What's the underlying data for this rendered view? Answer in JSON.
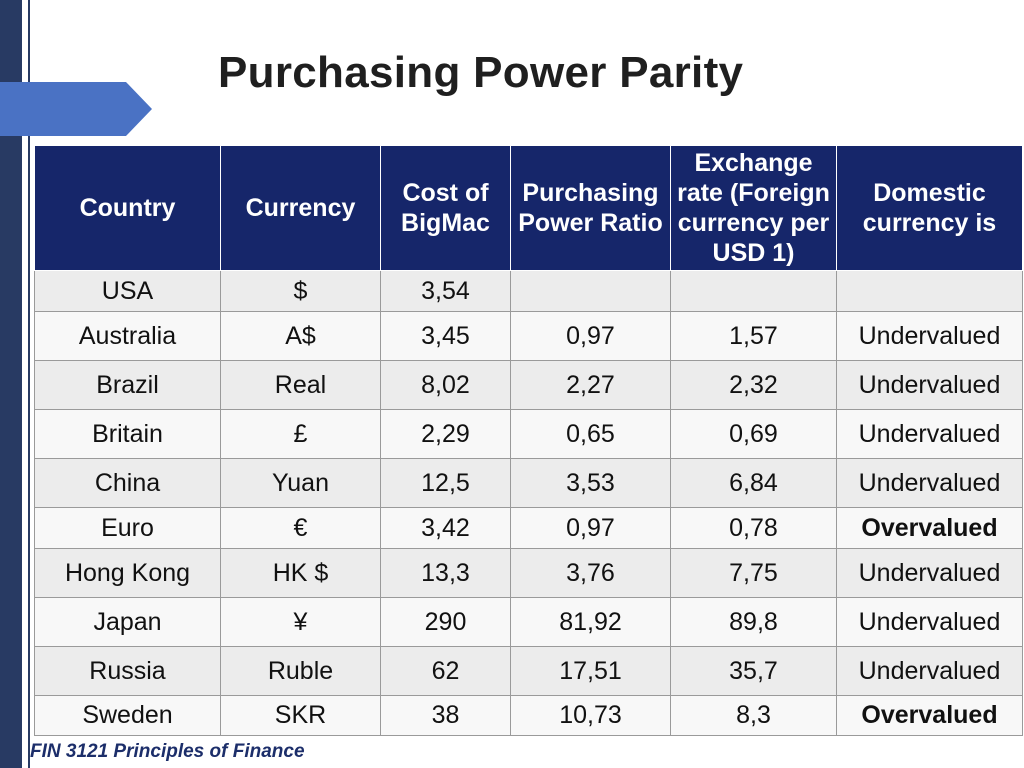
{
  "title": "Purchasing Power Parity",
  "colors": {
    "header_bg": "#16266a",
    "accent": "#4a72c4",
    "sidebar": "#283a63"
  },
  "table": {
    "headers": [
      "Country",
      "Currency",
      "Cost of BigMac",
      "Purchasing Power Ratio",
      "Exchange rate (Foreign currency per USD 1)",
      "Domestic currency is"
    ],
    "rows": [
      [
        "USA",
        "$",
        "3,54",
        "",
        "",
        ""
      ],
      [
        "Australia",
        "A$",
        "3,45",
        "0,97",
        "1,57",
        "Undervalued"
      ],
      [
        "Brazil",
        "Real",
        "8,02",
        "2,27",
        "2,32",
        "Undervalued"
      ],
      [
        "Britain",
        "£",
        "2,29",
        "0,65",
        "0,69",
        "Undervalued"
      ],
      [
        "China",
        "Yuan",
        "12,5",
        "3,53",
        "6,84",
        "Undervalued"
      ],
      [
        "Euro",
        "€",
        "3,42",
        "0,97",
        "0,78",
        "Overvalued"
      ],
      [
        "Hong Kong",
        "HK $",
        "13,3",
        "3,76",
        "7,75",
        "Undervalued"
      ],
      [
        "Japan",
        "¥",
        "290",
        "81,92",
        "89,8",
        "Undervalued"
      ],
      [
        "Russia",
        "Ruble",
        "62",
        "17,51",
        "35,7",
        "Undervalued"
      ],
      [
        "Sweden",
        "SKR",
        "38",
        "10,73",
        "8,3",
        "Overvalued"
      ]
    ]
  },
  "footer": "FIN 3121 Principles of Finance"
}
